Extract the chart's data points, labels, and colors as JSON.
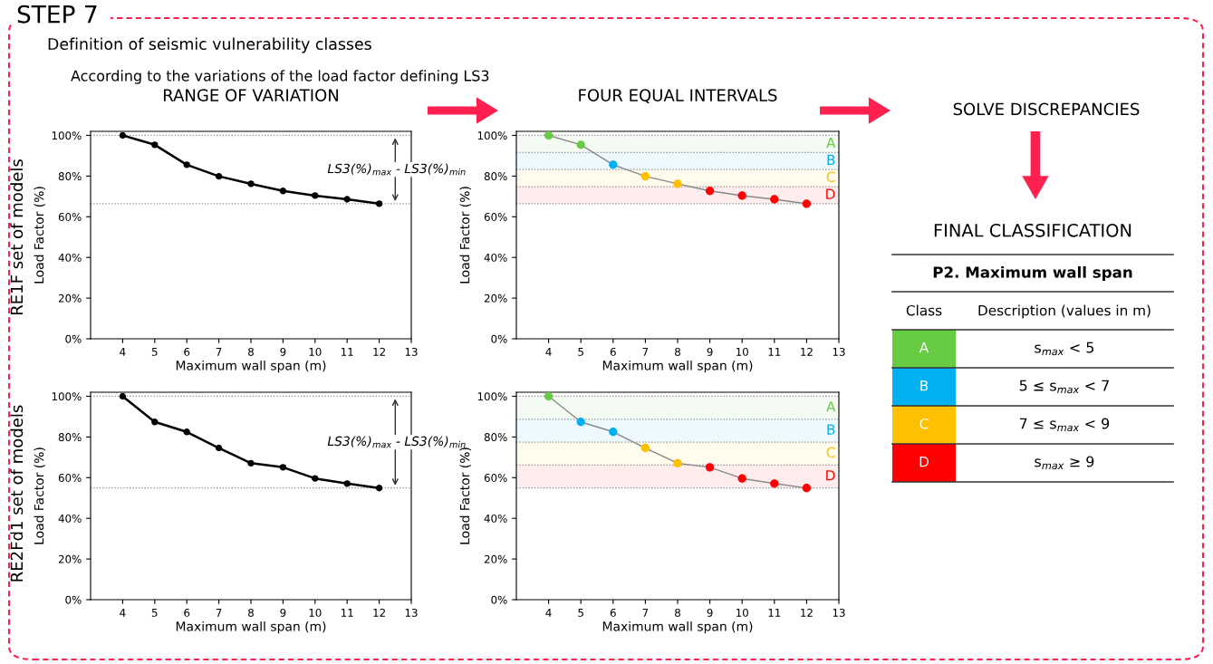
{
  "chart_data": [
    {
      "type": "line",
      "title": "RANGE OF VARIATION",
      "xlabel": "Maximum wall span (m)",
      "ylabel": "Load Factor (%)",
      "x": [
        4,
        5,
        6,
        7,
        8,
        9,
        10,
        11,
        12
      ],
      "series": [
        {
          "color": "#000000",
          "values": [
            100,
            95.4,
            85.6,
            79.9,
            76.2,
            72.7,
            70.4,
            68.6,
            66.4
          ]
        }
      ],
      "xlim": [
        3,
        13
      ],
      "xticks": [
        4,
        5,
        6,
        7,
        8,
        9,
        10,
        11,
        12,
        13
      ],
      "ylim": [
        0,
        102
      ],
      "yticks": [
        {
          "value": 0,
          "label": "0%"
        },
        {
          "value": 20,
          "label": "20%"
        },
        {
          "value": 40,
          "label": "40%"
        },
        {
          "value": 60,
          "label": "60%"
        },
        {
          "value": 80,
          "label": "80%"
        },
        {
          "value": 100,
          "label": "100%"
        }
      ],
      "marker": "circle",
      "line_style": "solid",
      "ref_lines": [
        {
          "axis": "y",
          "value": 100,
          "color": "#888888",
          "line_style": "dotted"
        },
        {
          "axis": "y",
          "value": 66.4,
          "color": "#888888",
          "line_style": "dotted"
        }
      ],
      "annotations": [
        "LS3(%)$_{max}$ - LS3(%)$_{min}$"
      ]
    },
    {
      "type": "line",
      "title": "FOUR EQUAL INTERVALS",
      "xlabel": "Maximum wall span (m)",
      "ylabel": "Load Factor (%)",
      "x": [
        4,
        5,
        6,
        7,
        8,
        9,
        10,
        11,
        12
      ],
      "series": [
        {
          "color": "#888888",
          "colors": [
            "#66cc44",
            "#66cc44",
            "#00b0f0",
            "#ffc000",
            "#ffc000",
            "#ff0000",
            "#ff0000",
            "#ff0000",
            "#ff0000"
          ],
          "values": [
            100,
            95.4,
            85.6,
            79.9,
            76.2,
            72.7,
            70.4,
            68.6,
            66.4
          ]
        }
      ],
      "xlim": [
        3,
        13
      ],
      "xticks": [
        4,
        5,
        6,
        7,
        8,
        9,
        10,
        11,
        12,
        13
      ],
      "ylim": [
        0,
        102
      ],
      "yticks": [
        {
          "value": 0,
          "label": "0%"
        },
        {
          "value": 20,
          "label": "20%"
        },
        {
          "value": 40,
          "label": "40%"
        },
        {
          "value": 60,
          "label": "60%"
        },
        {
          "value": 80,
          "label": "80%"
        },
        {
          "value": 100,
          "label": "100%"
        }
      ],
      "marker": "circle",
      "line_style": "solid",
      "ref_lines": [
        {
          "axis": "y",
          "value": 100,
          "color": "#888888",
          "line_style": "dotted"
        },
        {
          "axis": "y",
          "value": 91.6,
          "color": "#888888",
          "line_style": "dotted"
        },
        {
          "axis": "y",
          "value": 83.2,
          "color": "#888888",
          "line_style": "dotted"
        },
        {
          "axis": "y",
          "value": 74.8,
          "color": "#888888",
          "line_style": "dotted"
        },
        {
          "axis": "y",
          "value": 66.4,
          "color": "#888888",
          "line_style": "dotted"
        }
      ],
      "bands": [
        {
          "axis": "y",
          "from": 91.6,
          "to": 100,
          "label": "A",
          "color": "#66cc44"
        },
        {
          "axis": "y",
          "from": 83.2,
          "to": 91.6,
          "label": "B",
          "color": "#00b0f0"
        },
        {
          "axis": "y",
          "from": 74.8,
          "to": 83.2,
          "label": "C",
          "color": "#ffc000"
        },
        {
          "axis": "y",
          "from": 66.4,
          "to": 74.8,
          "label": "D",
          "color": "#ff0000"
        }
      ]
    },
    {
      "type": "line",
      "xlabel": "Maximum wall span (m)",
      "ylabel": "Load Factor (%)",
      "x": [
        4,
        5,
        6,
        7,
        8,
        9,
        10,
        11,
        12
      ],
      "series": [
        {
          "color": "#000000",
          "values": [
            100,
            87.4,
            82.5,
            74.6,
            67.1,
            65.1,
            59.6,
            57.1,
            54.9
          ]
        }
      ],
      "xlim": [
        3,
        13
      ],
      "xticks": [
        4,
        5,
        6,
        7,
        8,
        9,
        10,
        11,
        12,
        13
      ],
      "ylim": [
        0,
        102
      ],
      "yticks": [
        {
          "value": 0,
          "label": "0%"
        },
        {
          "value": 20,
          "label": "20%"
        },
        {
          "value": 40,
          "label": "40%"
        },
        {
          "value": 60,
          "label": "60%"
        },
        {
          "value": 80,
          "label": "80%"
        },
        {
          "value": 100,
          "label": "100%"
        }
      ],
      "marker": "circle",
      "line_style": "solid",
      "ref_lines": [
        {
          "axis": "y",
          "value": 100,
          "color": "#888888",
          "line_style": "dotted"
        },
        {
          "axis": "y",
          "value": 54.9,
          "color": "#888888",
          "line_style": "dotted"
        }
      ],
      "annotations": [
        "LS3(%)$_{max}$ - LS3(%)$_{min}$"
      ]
    },
    {
      "type": "line",
      "xlabel": "Maximum wall span (m)",
      "ylabel": "Load Factor (%)",
      "x": [
        4,
        5,
        6,
        7,
        8,
        9,
        10,
        11,
        12
      ],
      "series": [
        {
          "color": "#888888",
          "colors": [
            "#66cc44",
            "#00b0f0",
            "#00b0f0",
            "#ffc000",
            "#ffc000",
            "#ff0000",
            "#ff0000",
            "#ff0000",
            "#ff0000"
          ],
          "values": [
            100,
            87.4,
            82.5,
            74.6,
            67.1,
            65.1,
            59.6,
            57.1,
            54.9
          ]
        }
      ],
      "xlim": [
        3,
        13
      ],
      "xticks": [
        4,
        5,
        6,
        7,
        8,
        9,
        10,
        11,
        12,
        13
      ],
      "ylim": [
        0,
        102
      ],
      "yticks": [
        {
          "value": 0,
          "label": "0%"
        },
        {
          "value": 20,
          "label": "20%"
        },
        {
          "value": 40,
          "label": "40%"
        },
        {
          "value": 60,
          "label": "60%"
        },
        {
          "value": 80,
          "label": "80%"
        },
        {
          "value": 100,
          "label": "100%"
        }
      ],
      "marker": "circle",
      "line_style": "solid",
      "ref_lines": [
        {
          "axis": "y",
          "value": 100,
          "color": "#888888",
          "line_style": "dotted"
        },
        {
          "axis": "y",
          "value": 88.7,
          "color": "#888888",
          "line_style": "dotted"
        },
        {
          "axis": "y",
          "value": 77.5,
          "color": "#888888",
          "line_style": "dotted"
        },
        {
          "axis": "y",
          "value": 66.2,
          "color": "#888888",
          "line_style": "dotted"
        },
        {
          "axis": "y",
          "value": 54.9,
          "color": "#888888",
          "line_style": "dotted"
        }
      ],
      "bands": [
        {
          "axis": "y",
          "from": 88.7,
          "to": 100,
          "label": "A",
          "color": "#66cc44"
        },
        {
          "axis": "y",
          "from": 77.5,
          "to": 88.7,
          "label": "B",
          "color": "#00b0f0"
        },
        {
          "axis": "y",
          "from": 66.2,
          "to": 77.5,
          "label": "C",
          "color": "#ffc000"
        },
        {
          "axis": "y",
          "from": 54.9,
          "to": 66.2,
          "label": "D",
          "color": "#ff0000"
        }
      ]
    },
    {
      "type": "other",
      "title": "STEP 7",
      "annotations": [
        "Definition of seismic vulnerability classes",
        "According to the variations of the load factor defining LS3",
        "SOLVE DISCREPANCIES",
        "RE1F set of models",
        "RE2Fd1 set of models"
      ]
    },
    {
      "type": "other",
      "title": "FINAL CLASSIFICATION",
      "subtitle": "P2. Maximum wall span",
      "categories": [
        "A",
        "B",
        "C",
        "D"
      ],
      "colors": [
        "#66cc44",
        "#00b0f0",
        "#ffc000",
        "#ff0000"
      ],
      "annotations": [
        "Class",
        "Description (values in m)",
        "s$_{max}$ < 5",
        "5 ≤ s$_{max}$ < 7",
        "7 ≤ s$_{max}$ < 9",
        "s$_{max}$ ≥ 9"
      ]
    }
  ]
}
